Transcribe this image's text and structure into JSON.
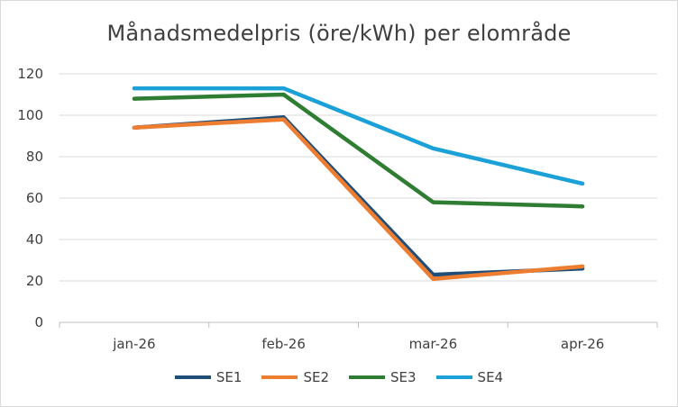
{
  "chart_data": {
    "type": "line",
    "title": "Månadsmedelpris (öre/kWh) per elområde",
    "categories": [
      "jan-26",
      "feb-26",
      "mar-26",
      "apr-26"
    ],
    "ylim": [
      0,
      120
    ],
    "yticks": [
      0,
      20,
      40,
      60,
      80,
      100,
      120
    ],
    "grid": true,
    "legend_position": "bottom",
    "series": [
      {
        "name": "SE1",
        "color": "#1f4e79",
        "values": [
          94,
          99,
          23,
          26
        ]
      },
      {
        "name": "SE2",
        "color": "#ed7d31",
        "values": [
          94,
          98,
          21,
          27
        ]
      },
      {
        "name": "SE3",
        "color": "#2e7d32",
        "values": [
          108,
          110,
          58,
          56
        ]
      },
      {
        "name": "SE4",
        "color": "#1ba1d8",
        "values": [
          113,
          113,
          84,
          67
        ]
      }
    ]
  }
}
